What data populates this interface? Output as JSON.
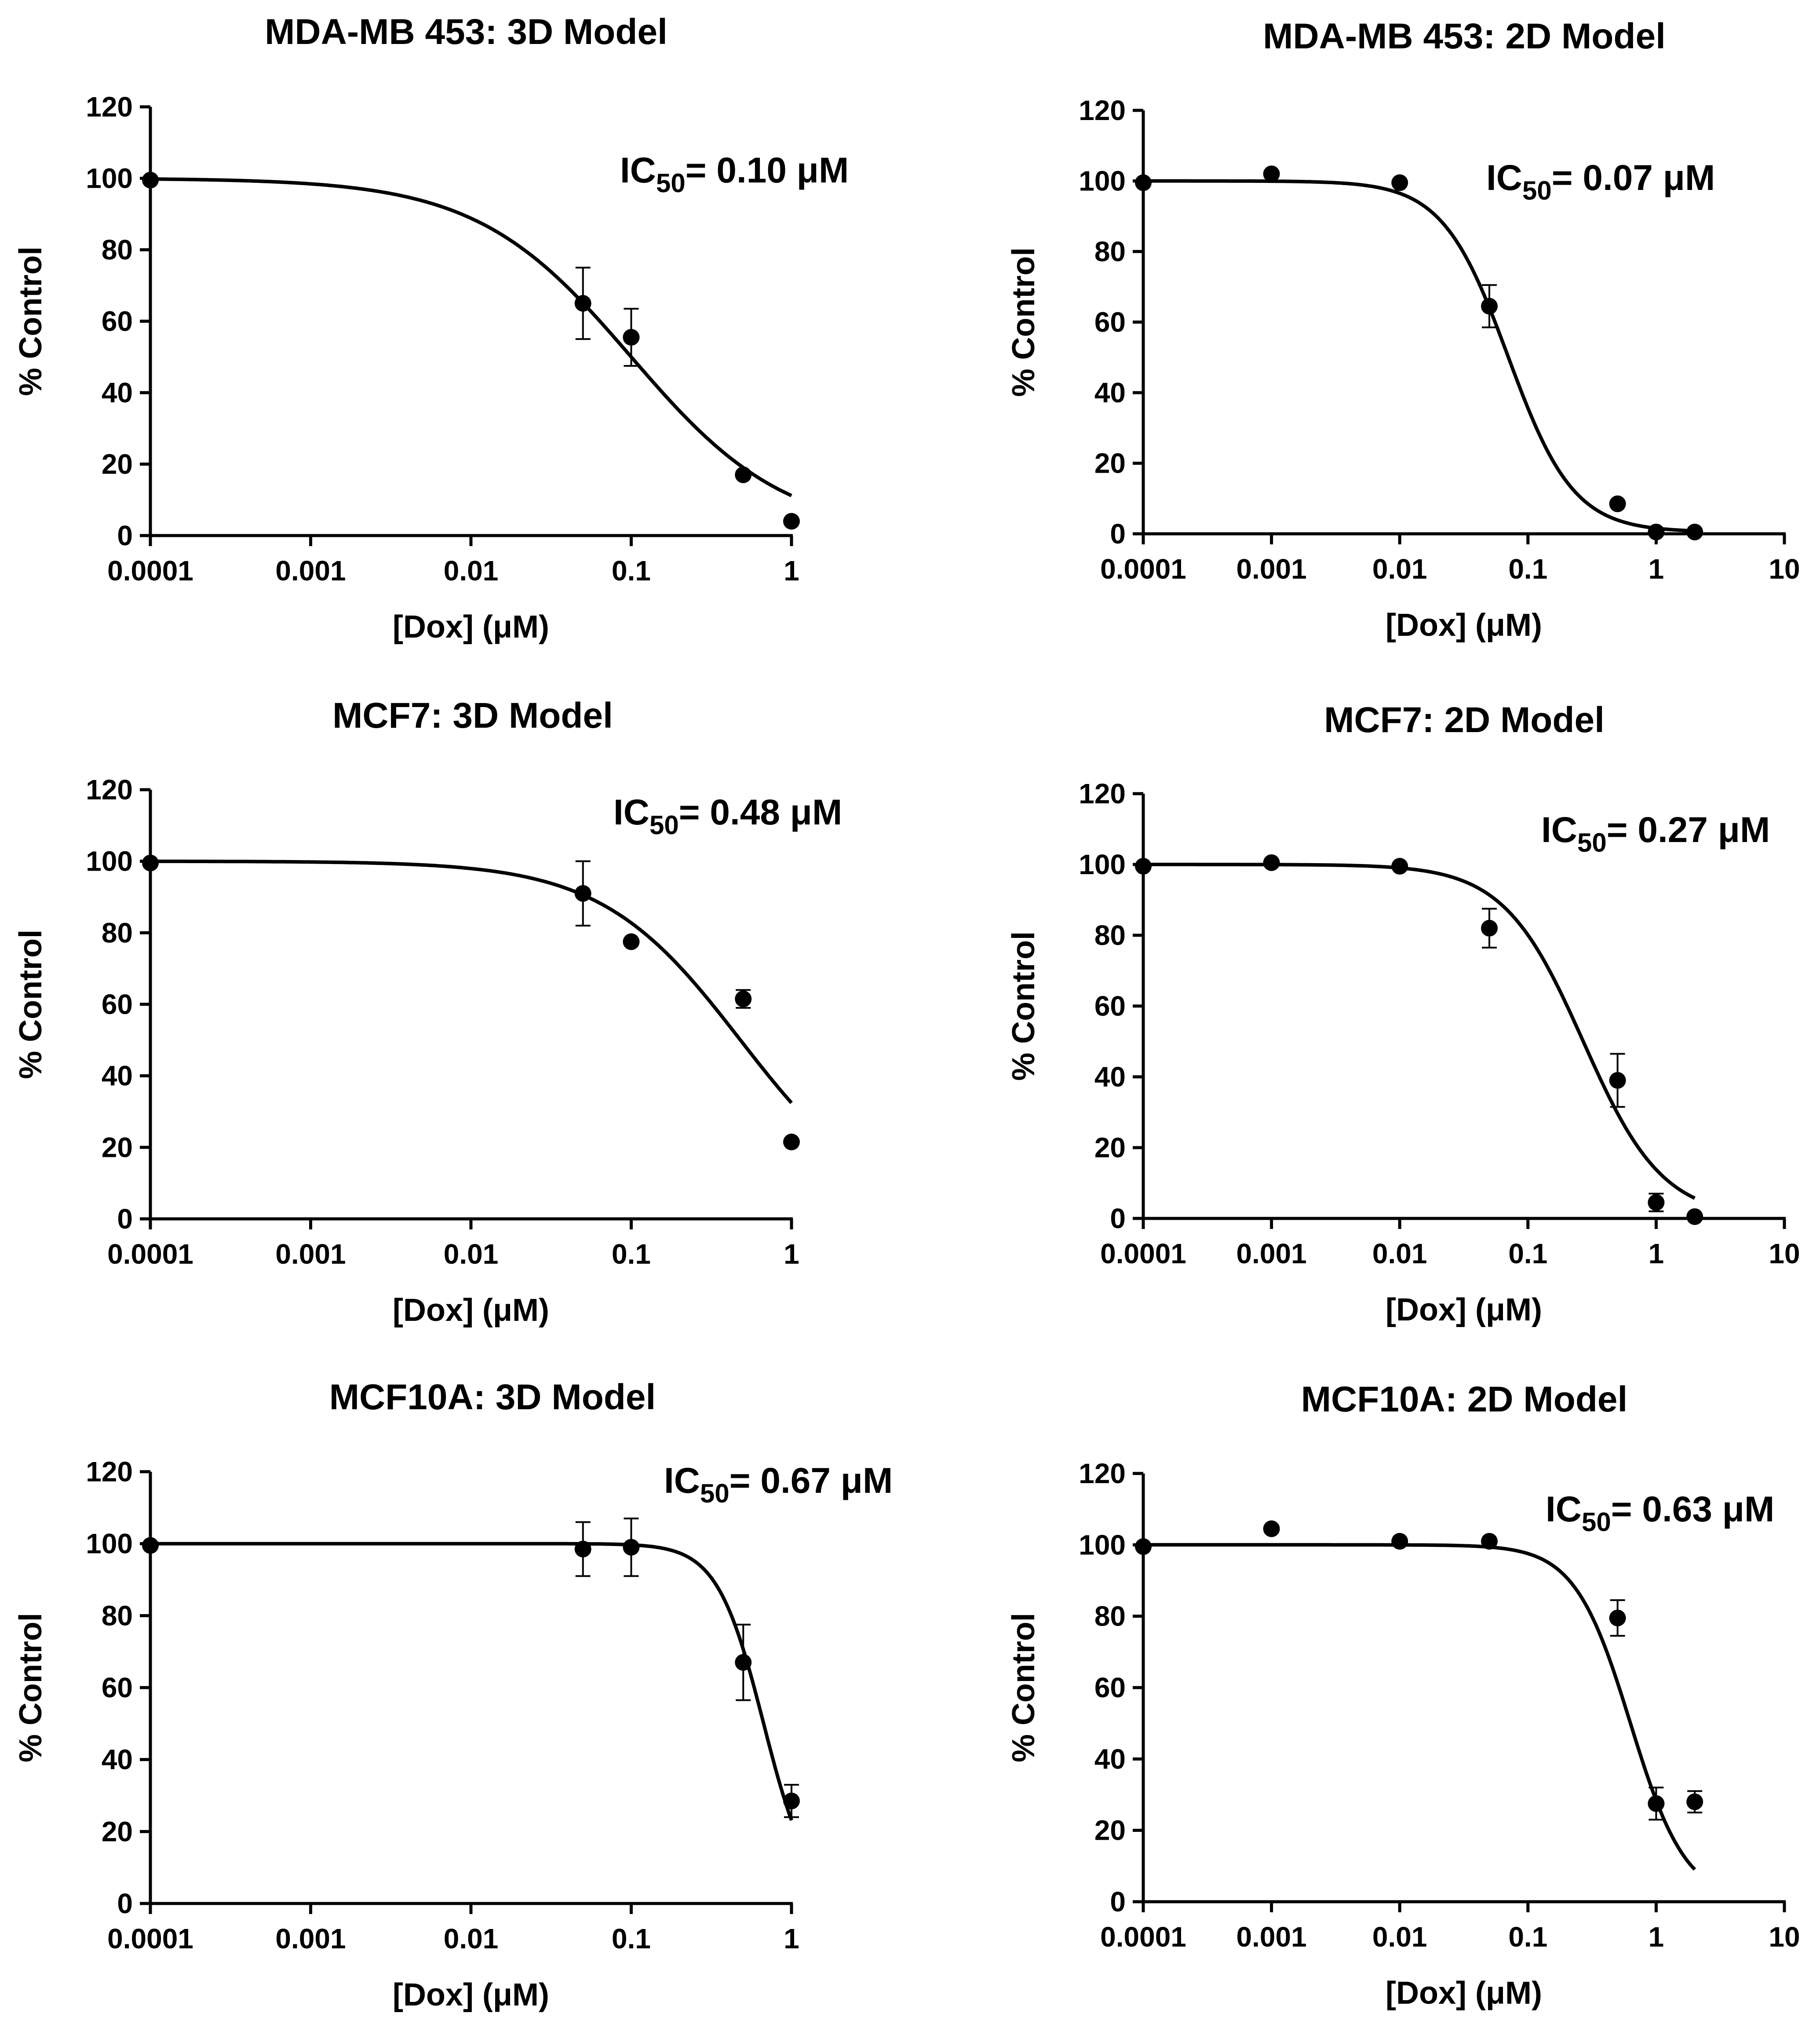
{
  "figure": {
    "domain": "Chart"
  },
  "chart_data": [
    {
      "type": "scatter",
      "title": "MDA-MB 453: 3D Model",
      "xlabel": "[Dox] (μM)",
      "ylabel": "% Control",
      "xscale": "log",
      "xlim": [
        0.0001,
        1
      ],
      "ylim": [
        0,
        120
      ],
      "x_ticks": [
        "0.0001",
        "0.001",
        "0.01",
        "0.1",
        "1"
      ],
      "y_ticks": [
        "0",
        "20",
        "40",
        "60",
        "80",
        "100",
        "120"
      ],
      "ic50_label": "IC",
      "ic50_sub": "50",
      "ic50_value": "= 0.10 μM",
      "fit": {
        "top": 100,
        "bottom": 0,
        "ic50": 0.1,
        "hill": 0.9,
        "x_range": [
          0.0001,
          1
        ]
      },
      "points": [
        {
          "x": 0.0001,
          "y": 99.5,
          "err": 0
        },
        {
          "x": 0.05,
          "y": 65,
          "err": 10
        },
        {
          "x": 0.1,
          "y": 55.5,
          "err": 8
        },
        {
          "x": 0.5,
          "y": 17,
          "err": 0
        },
        {
          "x": 1,
          "y": 4,
          "err": 0
        }
      ]
    },
    {
      "type": "scatter",
      "title": "MDA-MB 453: 2D Model",
      "xlabel": "[Dox] (μM)",
      "ylabel": "% Control",
      "xscale": "log",
      "xlim": [
        0.0001,
        10
      ],
      "ylim": [
        0,
        120
      ],
      "x_ticks": [
        "0.0001",
        "0.001",
        "0.01",
        "0.1",
        "1",
        "10"
      ],
      "y_ticks": [
        "0",
        "20",
        "40",
        "60",
        "80",
        "100",
        "120"
      ],
      "ic50_label": "IC",
      "ic50_sub": "50",
      "ic50_value": "= 0.07 μM",
      "fit": {
        "top": 100,
        "bottom": 0.5,
        "ic50": 0.07,
        "hill": 1.7,
        "x_range": [
          0.0001,
          2
        ]
      },
      "points": [
        {
          "x": 0.0001,
          "y": 99.5,
          "err": 0
        },
        {
          "x": 0.001,
          "y": 102,
          "err": 0
        },
        {
          "x": 0.01,
          "y": 99.5,
          "err": 0
        },
        {
          "x": 0.05,
          "y": 64.5,
          "err": 6
        },
        {
          "x": 0.5,
          "y": 8.5,
          "err": 0
        },
        {
          "x": 1,
          "y": 0.5,
          "err": 0
        },
        {
          "x": 2,
          "y": 0.5,
          "err": 0
        }
      ]
    },
    {
      "type": "scatter",
      "title": "MCF7: 3D Model",
      "xlabel": "[Dox] (μM)",
      "ylabel": "% Control",
      "xscale": "log",
      "xlim": [
        0.0001,
        1
      ],
      "ylim": [
        0,
        120
      ],
      "x_ticks": [
        "0.0001",
        "0.001",
        "0.01",
        "0.1",
        "1"
      ],
      "y_ticks": [
        "0",
        "20",
        "40",
        "60",
        "80",
        "100",
        "120"
      ],
      "ic50_label": "IC",
      "ic50_sub": "50",
      "ic50_value": "= 0.48 μM",
      "fit": {
        "top": 100,
        "bottom": 0,
        "ic50": 0.48,
        "hill": 1.0,
        "x_range": [
          0.0001,
          1
        ]
      },
      "points": [
        {
          "x": 0.0001,
          "y": 99.5,
          "err": 0
        },
        {
          "x": 0.05,
          "y": 91,
          "err": 9
        },
        {
          "x": 0.1,
          "y": 77.5,
          "err": 0
        },
        {
          "x": 0.5,
          "y": 61.5,
          "err": 2.5
        },
        {
          "x": 1,
          "y": 21.5,
          "err": 0
        }
      ]
    },
    {
      "type": "scatter",
      "title": "MCF7: 2D Model",
      "xlabel": "[Dox] (μM)",
      "ylabel": "% Control",
      "xscale": "log",
      "xlim": [
        0.0001,
        10
      ],
      "ylim": [
        0,
        120
      ],
      "x_ticks": [
        "0.0001",
        "0.001",
        "0.01",
        "0.1",
        "1",
        "10"
      ],
      "y_ticks": [
        "0",
        "20",
        "40",
        "60",
        "80",
        "100",
        "120"
      ],
      "ic50_label": "IC",
      "ic50_sub": "50",
      "ic50_value": "= 0.27 μM",
      "fit": {
        "top": 100,
        "bottom": 0,
        "ic50": 0.27,
        "hill": 1.4,
        "x_range": [
          0.0001,
          2
        ]
      },
      "points": [
        {
          "x": 0.0001,
          "y": 99.5,
          "err": 0
        },
        {
          "x": 0.001,
          "y": 100.5,
          "err": 0
        },
        {
          "x": 0.01,
          "y": 99.5,
          "err": 0
        },
        {
          "x": 0.05,
          "y": 82,
          "err": 5.5
        },
        {
          "x": 0.5,
          "y": 39,
          "err": 7.5
        },
        {
          "x": 1,
          "y": 4.5,
          "err": 2.5
        },
        {
          "x": 2,
          "y": 0.5,
          "err": 0
        }
      ]
    },
    {
      "type": "scatter",
      "title": "MCF10A: 3D Model",
      "xlabel": "[Dox] (μM)",
      "ylabel": "% Control",
      "xscale": "log",
      "xlim": [
        0.0001,
        1
      ],
      "ylim": [
        0,
        120
      ],
      "x_ticks": [
        "0.0001",
        "0.001",
        "0.01",
        "0.1",
        "1"
      ],
      "y_ticks": [
        "0",
        "20",
        "40",
        "60",
        "80",
        "100",
        "120"
      ],
      "ic50_label": "IC",
      "ic50_sub": "50",
      "ic50_value": "= 0.67 μM",
      "fit": {
        "top": 100,
        "bottom": 0,
        "ic50": 0.67,
        "hill": 3.0,
        "x_range": [
          0.0001,
          1
        ]
      },
      "points": [
        {
          "x": 0.0001,
          "y": 99.5,
          "err": 0
        },
        {
          "x": 0.05,
          "y": 98.5,
          "err": 7.5
        },
        {
          "x": 0.1,
          "y": 99,
          "err": 8
        },
        {
          "x": 0.5,
          "y": 67,
          "err": 10.5
        },
        {
          "x": 1,
          "y": 28.5,
          "err": 4.5
        }
      ]
    },
    {
      "type": "scatter",
      "title": "MCF10A: 2D Model",
      "xlabel": "[Dox] (μM)",
      "ylabel": "% Control",
      "xscale": "log",
      "xlim": [
        0.0001,
        10
      ],
      "ylim": [
        0,
        120
      ],
      "x_ticks": [
        "0.0001",
        "0.001",
        "0.01",
        "0.1",
        "1",
        "10"
      ],
      "y_ticks": [
        "0",
        "20",
        "40",
        "60",
        "80",
        "100",
        "120"
      ],
      "ic50_label": "IC",
      "ic50_sub": "50",
      "ic50_value": "= 0.63 μM",
      "fit": {
        "top": 100,
        "bottom": 0,
        "ic50": 0.63,
        "hill": 2.0,
        "x_range": [
          0.0001,
          2
        ]
      },
      "points": [
        {
          "x": 0.0001,
          "y": 99.5,
          "err": 0
        },
        {
          "x": 0.001,
          "y": 104.5,
          "err": 0
        },
        {
          "x": 0.01,
          "y": 101,
          "err": 0
        },
        {
          "x": 0.05,
          "y": 101,
          "err": 0
        },
        {
          "x": 0.5,
          "y": 79.5,
          "err": 5
        },
        {
          "x": 1,
          "y": 27.5,
          "err": 4.5
        },
        {
          "x": 2,
          "y": 28,
          "err": 3
        }
      ]
    }
  ]
}
